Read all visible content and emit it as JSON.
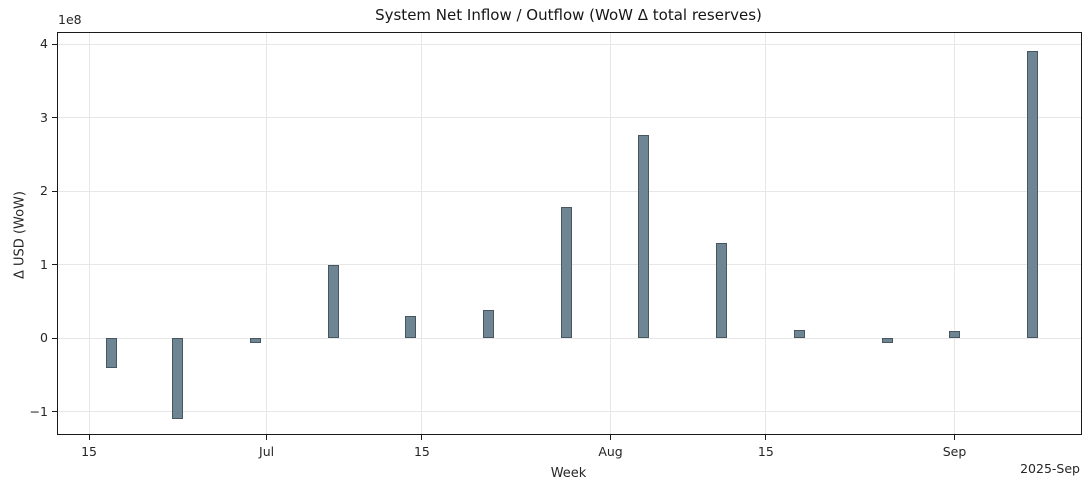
{
  "figure": {
    "title": "System Net Inflow / Outflow (WoW Δ total reserves)",
    "xlabel": "Week",
    "ylabel": "Δ USD (WoW)",
    "y_offset_text": "1e8",
    "x_offset_text": "2025-Sep"
  },
  "chart_data": {
    "type": "bar",
    "title": "System Net Inflow / Outflow (WoW Δ total reserves)",
    "xlabel": "Week",
    "ylabel": "Δ USD (WoW)",
    "y_units": "USD (axis displayed in multiples of 1e8)",
    "legend": "none",
    "grid": true,
    "bar_color": "#6e8694",
    "bar_edge_color": "#47565f",
    "points": [
      {
        "date": "2025-06-17",
        "day": 2,
        "value": -40000000
      },
      {
        "date": "2025-06-23",
        "day": 8,
        "value": -110000000
      },
      {
        "date": "2025-06-30",
        "day": 15,
        "value": -6000000
      },
      {
        "date": "2025-07-07",
        "day": 22,
        "value": 100000000
      },
      {
        "date": "2025-07-14",
        "day": 29,
        "value": 30000000
      },
      {
        "date": "2025-07-21",
        "day": 36,
        "value": 38000000
      },
      {
        "date": "2025-07-28",
        "day": 43,
        "value": 178000000
      },
      {
        "date": "2025-08-04",
        "day": 50,
        "value": 276000000
      },
      {
        "date": "2025-08-11",
        "day": 57,
        "value": 130000000
      },
      {
        "date": "2025-08-18",
        "day": 64,
        "value": 12000000
      },
      {
        "date": "2025-08-26",
        "day": 72,
        "value": -7000000
      },
      {
        "date": "2025-09-01",
        "day": 78,
        "value": 10000000
      },
      {
        "date": "2025-09-08",
        "day": 85,
        "value": 390000000
      }
    ],
    "x_ticks": [
      {
        "label": "15",
        "day": 0
      },
      {
        "label": "Jul",
        "day": 16
      },
      {
        "label": "15",
        "day": 30
      },
      {
        "label": "Aug",
        "day": 47
      },
      {
        "label": "15",
        "day": 61
      },
      {
        "label": "Sep",
        "day": 78
      }
    ],
    "y_ticks_1e8": [
      -1,
      0,
      1,
      2,
      3,
      4
    ],
    "ylim_1e8": [
      -1.3,
      4.15
    ],
    "xlim_days_from_2025_06_15": [
      -2.8,
      89.4
    ],
    "bar_width_days": 1
  }
}
